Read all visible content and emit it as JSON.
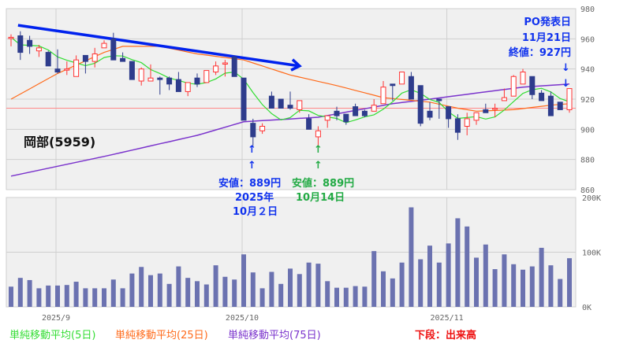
{
  "chart_data": {
    "type": "candlestick",
    "title": "岡部(5959)",
    "colors": {
      "up": "#ff3333",
      "down": "#2e3c8c",
      "volume": "#6b72b0",
      "ma5": "#33dd33",
      "ma25": "#ff6a1a",
      "ma75": "#7a33cc",
      "trend": "#0022ee",
      "reference": "#ff8888"
    },
    "price_axis": {
      "min": 860,
      "max": 980,
      "ticks": [
        "980",
        "960",
        "940",
        "920",
        "900",
        "880",
        "860"
      ]
    },
    "volume_axis": {
      "min": 0,
      "max": 200000,
      "ticks": [
        "200K",
        "100K",
        "0K"
      ]
    },
    "x_labels": [
      {
        "index": 5,
        "label": "2025/9"
      },
      {
        "index": 25,
        "label": "2025/10"
      },
      {
        "index": 47,
        "label": "2025/11"
      }
    ],
    "ohlc": [
      [
        961,
        963,
        955,
        961
      ],
      [
        962,
        965,
        946,
        951
      ],
      [
        959,
        962,
        950,
        955
      ],
      [
        952,
        956,
        948,
        954
      ],
      [
        951,
        952,
        942,
        942
      ],
      [
        940,
        953,
        937,
        938
      ],
      [
        940,
        945,
        936,
        940
      ],
      [
        935,
        949,
        935,
        946
      ],
      [
        949,
        949,
        937,
        945
      ],
      [
        945,
        954,
        941,
        950
      ],
      [
        954,
        959,
        954,
        957
      ],
      [
        960,
        964,
        946,
        946
      ],
      [
        947,
        951,
        945,
        945
      ],
      [
        945,
        945,
        933,
        933
      ],
      [
        932,
        941,
        929,
        940
      ],
      [
        932,
        943,
        932,
        934
      ],
      [
        934,
        935,
        923,
        933
      ],
      [
        934,
        935,
        926,
        930
      ],
      [
        933,
        938,
        925,
        925
      ],
      [
        925,
        931,
        922,
        931
      ],
      [
        934,
        937,
        928,
        930
      ],
      [
        931,
        939,
        931,
        939
      ],
      [
        938,
        945,
        936,
        942
      ],
      [
        944,
        946,
        935,
        944
      ],
      [
        948,
        949,
        935,
        935
      ],
      [
        934,
        934,
        906,
        906
      ],
      [
        904,
        907,
        889,
        895
      ],
      [
        899,
        904,
        897,
        902
      ],
      [
        922,
        925,
        914,
        914
      ],
      [
        920,
        920,
        914,
        914
      ],
      [
        916,
        925,
        913,
        914
      ],
      [
        913,
        919,
        911,
        919
      ],
      [
        907,
        910,
        900,
        900
      ],
      [
        895,
        902,
        889,
        899
      ],
      [
        906,
        909,
        901,
        909
      ],
      [
        912,
        915,
        906,
        909
      ],
      [
        910,
        910,
        903,
        905
      ],
      [
        915,
        917,
        909,
        909
      ],
      [
        912,
        913,
        908,
        909
      ],
      [
        912,
        920,
        912,
        916
      ],
      [
        917,
        932,
        917,
        928
      ],
      [
        930,
        930,
        919,
        929
      ],
      [
        930,
        938,
        930,
        938
      ],
      [
        935,
        938,
        920,
        920
      ],
      [
        929,
        929,
        902,
        904
      ],
      [
        912,
        918,
        906,
        908
      ],
      [
        920,
        920,
        907,
        919
      ],
      [
        915,
        915,
        901,
        907
      ],
      [
        907,
        910,
        893,
        898
      ],
      [
        902,
        911,
        896,
        907
      ],
      [
        906,
        911,
        903,
        911
      ],
      [
        913,
        917,
        911,
        911
      ],
      [
        914,
        917,
        908,
        914
      ],
      [
        919,
        927,
        919,
        921
      ],
      [
        922,
        936,
        922,
        935
      ],
      [
        930,
        940,
        930,
        938
      ],
      [
        935,
        935,
        920,
        923
      ],
      [
        924,
        926,
        919,
        919
      ],
      [
        922,
        925,
        909,
        909
      ],
      [
        918,
        918,
        913,
        913
      ],
      [
        913,
        927,
        911,
        927
      ]
    ],
    "volume_k": [
      37,
      53,
      49,
      34,
      39,
      39,
      40,
      46,
      34,
      34,
      34,
      50,
      34,
      61,
      73,
      58,
      61,
      42,
      74,
      53,
      47,
      41,
      76,
      55,
      50,
      96,
      63,
      34,
      64,
      42,
      70,
      60,
      81,
      79,
      47,
      35,
      35,
      38,
      37,
      102,
      65,
      52,
      81,
      182,
      87,
      112,
      81,
      116,
      162,
      147,
      90,
      114,
      69,
      96,
      78,
      68,
      74,
      108,
      76,
      51,
      89
    ],
    "ma25_points": [
      [
        0,
        920
      ],
      [
        5,
        937
      ],
      [
        10,
        951
      ],
      [
        12,
        955
      ],
      [
        16,
        955
      ],
      [
        20,
        950
      ],
      [
        25,
        946
      ],
      [
        30,
        936
      ],
      [
        35,
        929
      ],
      [
        40,
        921
      ],
      [
        45,
        918
      ],
      [
        48,
        914
      ],
      [
        50,
        912
      ],
      [
        54,
        913
      ],
      [
        58,
        916
      ],
      [
        60,
        917
      ]
    ],
    "ma75_points": [
      [
        0,
        869
      ],
      [
        10,
        882
      ],
      [
        20,
        896
      ],
      [
        25,
        905
      ],
      [
        33,
        908
      ],
      [
        41,
        917
      ],
      [
        45,
        920
      ],
      [
        50,
        924
      ],
      [
        55,
        928
      ],
      [
        60,
        930
      ]
    ],
    "reference_price": 914,
    "trendline": {
      "from": [
        0.75,
        969
      ],
      "to": [
        31,
        942
      ]
    }
  },
  "annotations": {
    "stock_name": "岡部(5959)",
    "low1_price": "安値：889円",
    "low1_year": "2025年",
    "low1_date": "10月２日",
    "low2_price": "安値：889円",
    "low2_date": "10月14日",
    "po_title": "PO発表日",
    "po_date": "11月21日",
    "po_close": "終値：927円",
    "arrow_up": "↑",
    "arrow_down": "↓"
  },
  "legend": {
    "ma5": "単純移動平均(5日)",
    "ma25": "単純移動平均(25日)",
    "ma75": "単純移動平均(75日)",
    "volume_note": "下段：出来高"
  }
}
